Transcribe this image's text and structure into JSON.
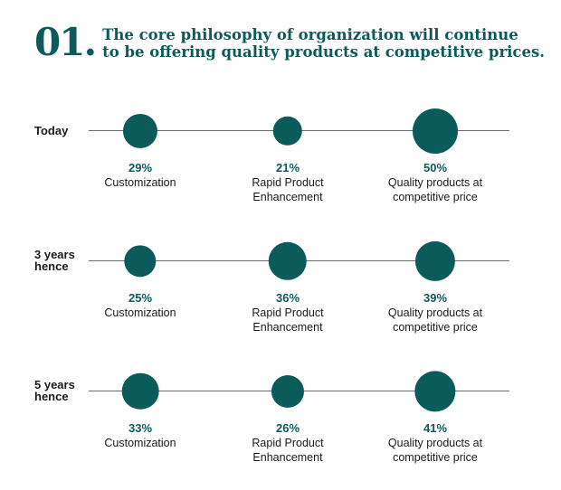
{
  "header": {
    "number": "01.",
    "headline_line1": "The core philosophy of organization will continue",
    "headline_line2": "to be offering quality products at competitive prices."
  },
  "colors": {
    "accent": "#0b5b5a",
    "line": "#6b6b6b",
    "label": "#1a1a1a"
  },
  "chart_data": {
    "type": "scatter",
    "categories": [
      "Customization",
      "Rapid Product Enhancement",
      "Quality products at competitive price"
    ],
    "category_display": [
      [
        "Customization"
      ],
      [
        "Rapid Product",
        "Enhancement"
      ],
      [
        "Quality products at",
        "competitive price"
      ]
    ],
    "series": [
      {
        "name": "Today",
        "label_lines": [
          "Today"
        ],
        "values": [
          29,
          21,
          50
        ],
        "value_labels": [
          "29%",
          "21%",
          "50%"
        ]
      },
      {
        "name": "3 years hence",
        "label_lines": [
          "3 years",
          "hence"
        ],
        "values": [
          25,
          36,
          39
        ],
        "value_labels": [
          "25%",
          "36%",
          "39%"
        ]
      },
      {
        "name": "5 years hence",
        "label_lines": [
          "5 years",
          "hence"
        ],
        "values": [
          33,
          26,
          41
        ],
        "value_labels": [
          "33%",
          "26%",
          "41%"
        ]
      }
    ],
    "unit": "%"
  }
}
